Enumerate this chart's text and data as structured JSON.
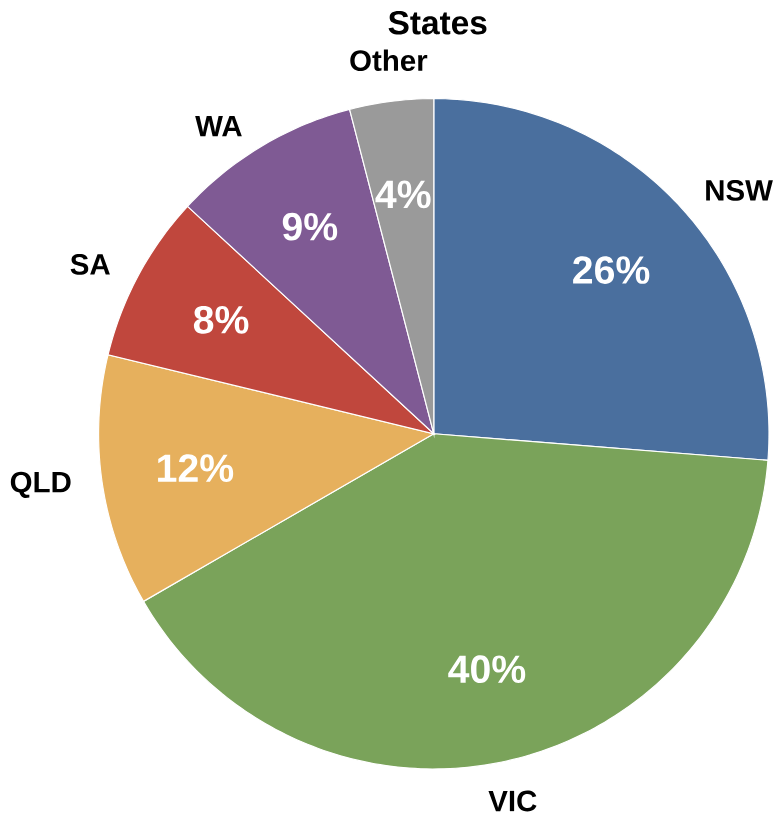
{
  "chart_data": {
    "type": "pie",
    "title": "States",
    "categories": [
      "NSW",
      "VIC",
      "QLD",
      "SA",
      "WA",
      "Other"
    ],
    "values": [
      26,
      40,
      12,
      8,
      9,
      4
    ],
    "value_labels": [
      "26%",
      "40%",
      "12%",
      "8%",
      "9%",
      "4%"
    ],
    "colors": [
      "#4a6f9e",
      "#7aa35a",
      "#e6b05d",
      "#c0473d",
      "#7f5a94",
      "#9a9a9a"
    ]
  }
}
